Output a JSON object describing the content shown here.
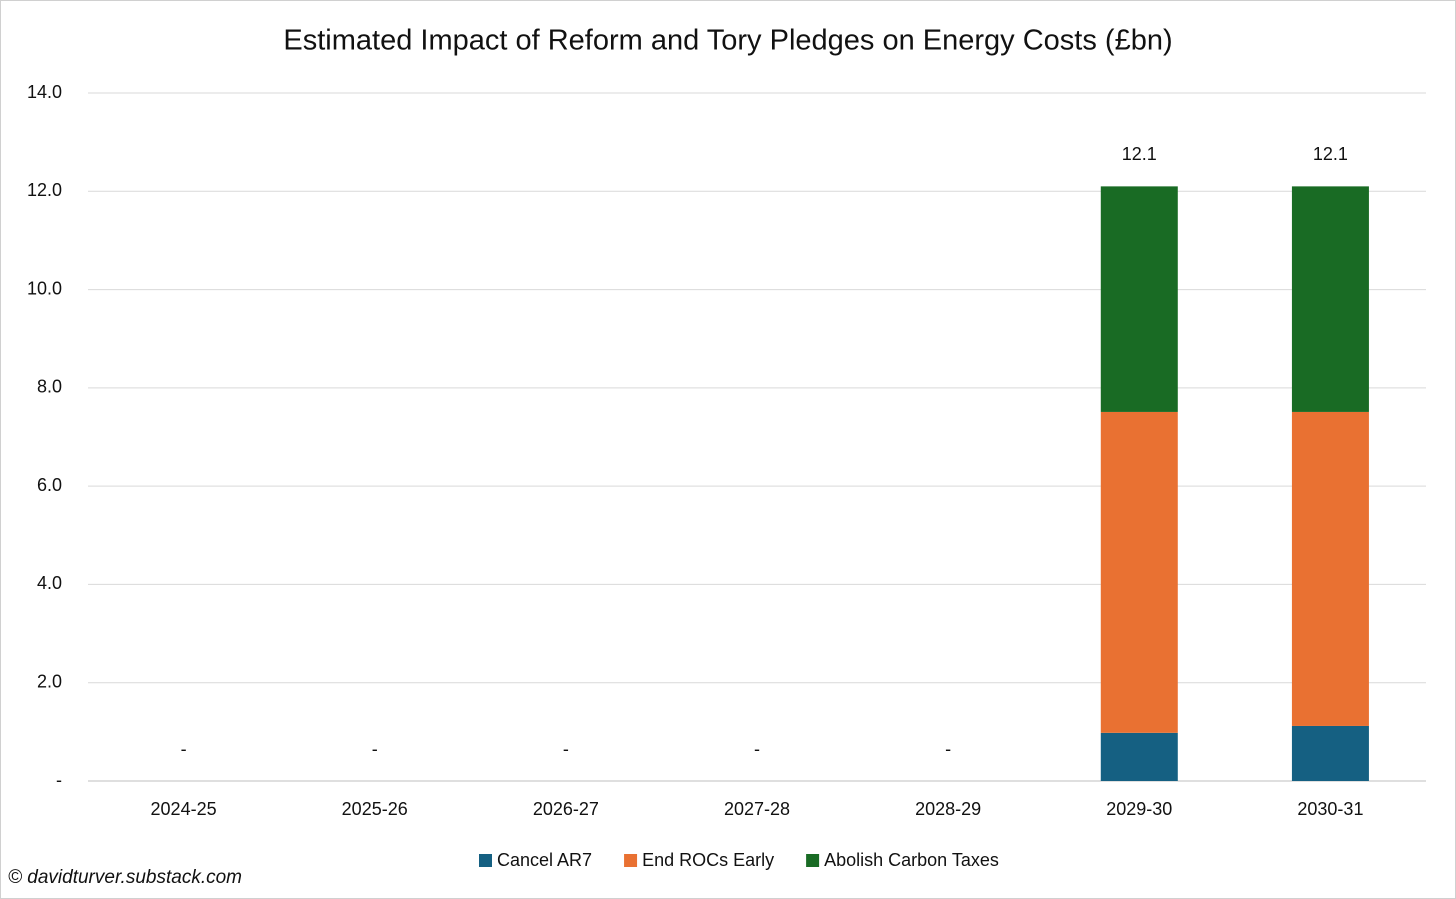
{
  "chart_data": {
    "type": "stacked-bar",
    "title": "Estimated Impact of Reform and Tory Pledges on Energy Costs (£bn)",
    "source": "© davidturver.substack.com",
    "categories": [
      "2024-25",
      "2025-26",
      "2026-27",
      "2027-28",
      "2028-29",
      "2029-30",
      "2030-31"
    ],
    "series": [
      {
        "name": "Cancel AR7",
        "color": "#156082",
        "values": [
          0,
          0,
          0,
          0,
          0,
          0.98,
          1.12
        ]
      },
      {
        "name": "End ROCs Early",
        "color": "#e97132",
        "values": [
          0,
          0,
          0,
          0,
          0,
          6.53,
          6.39
        ]
      },
      {
        "name": "Abolish Carbon Taxes",
        "color": "#196b24",
        "values": [
          0,
          0,
          0,
          0,
          0,
          4.59,
          4.59
        ]
      }
    ],
    "totals": {
      "values": [
        0,
        0,
        0,
        0,
        0,
        12.1,
        12.1
      ],
      "value_labels": [
        "-",
        "-",
        "-",
        "-",
        "-",
        "12.1",
        "12.1"
      ]
    },
    "ylim": [
      0,
      14
    ],
    "yticks": [
      {
        "value": 0,
        "label": "-"
      },
      {
        "value": 2,
        "label": "2.0"
      },
      {
        "value": 4,
        "label": "4.0"
      },
      {
        "value": 6,
        "label": "6.0"
      },
      {
        "value": 8,
        "label": "8.0"
      },
      {
        "value": 10,
        "label": "10.0"
      },
      {
        "value": 12,
        "label": "12.0"
      },
      {
        "value": 14,
        "label": "14.0"
      }
    ],
    "grid": true,
    "legend": "bottom"
  }
}
